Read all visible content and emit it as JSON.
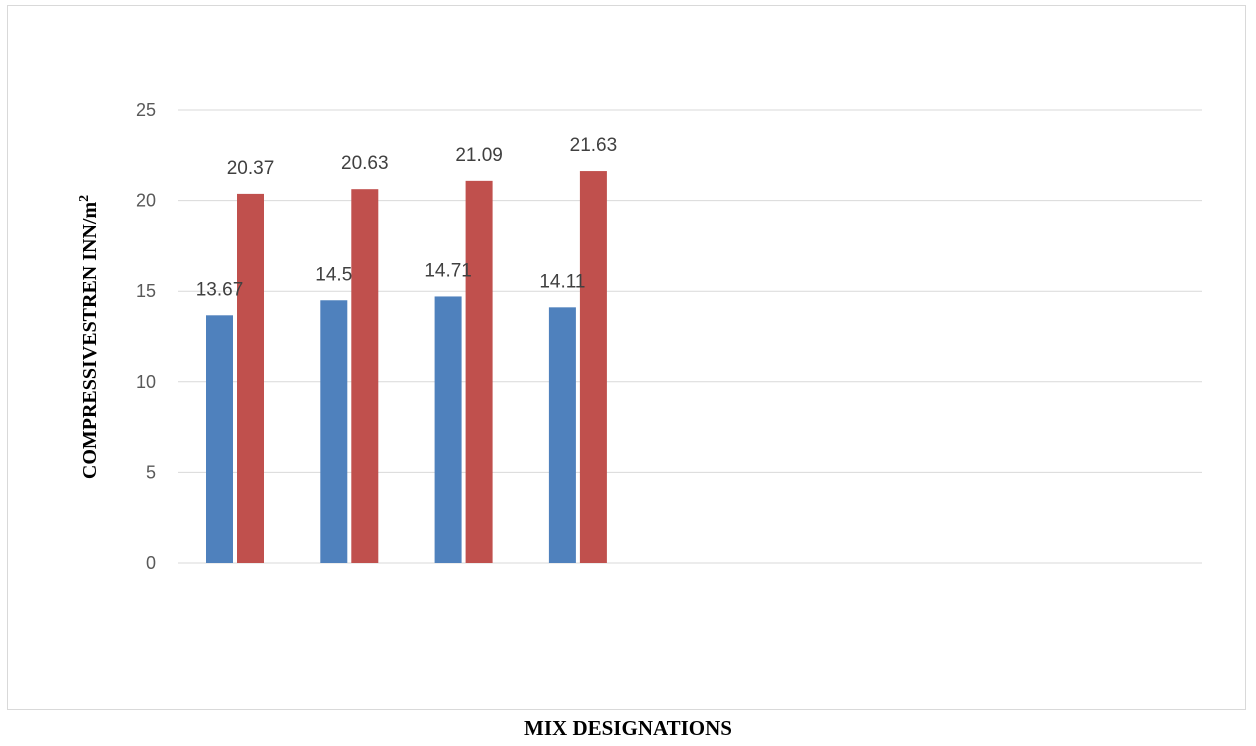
{
  "chart_data": {
    "type": "bar",
    "categories": [
      "",
      "",
      "",
      ""
    ],
    "series": [
      {
        "values": [
          13.67,
          14.5,
          14.71,
          14.11
        ],
        "color": "#4f81bd"
      },
      {
        "values": [
          20.37,
          20.63,
          21.09,
          21.63
        ],
        "color": "#c0504d"
      }
    ],
    "data_labels": [
      [
        "13.67",
        "14.5",
        "14.71",
        "14.11"
      ],
      [
        "20.37",
        "20.63",
        "21.09",
        "21.63"
      ]
    ],
    "xlabel": "MIX DESIGNATIONS",
    "ylabel": "COMPRESSIVESTREN INN/m",
    "ylabel_superscript": "2",
    "ylim": [
      0,
      25
    ],
    "yticks": [
      "0",
      "5",
      "10",
      "15",
      "20",
      "25"
    ],
    "grid": true,
    "gridline_color": "#d9d9d9",
    "legend": "none"
  }
}
